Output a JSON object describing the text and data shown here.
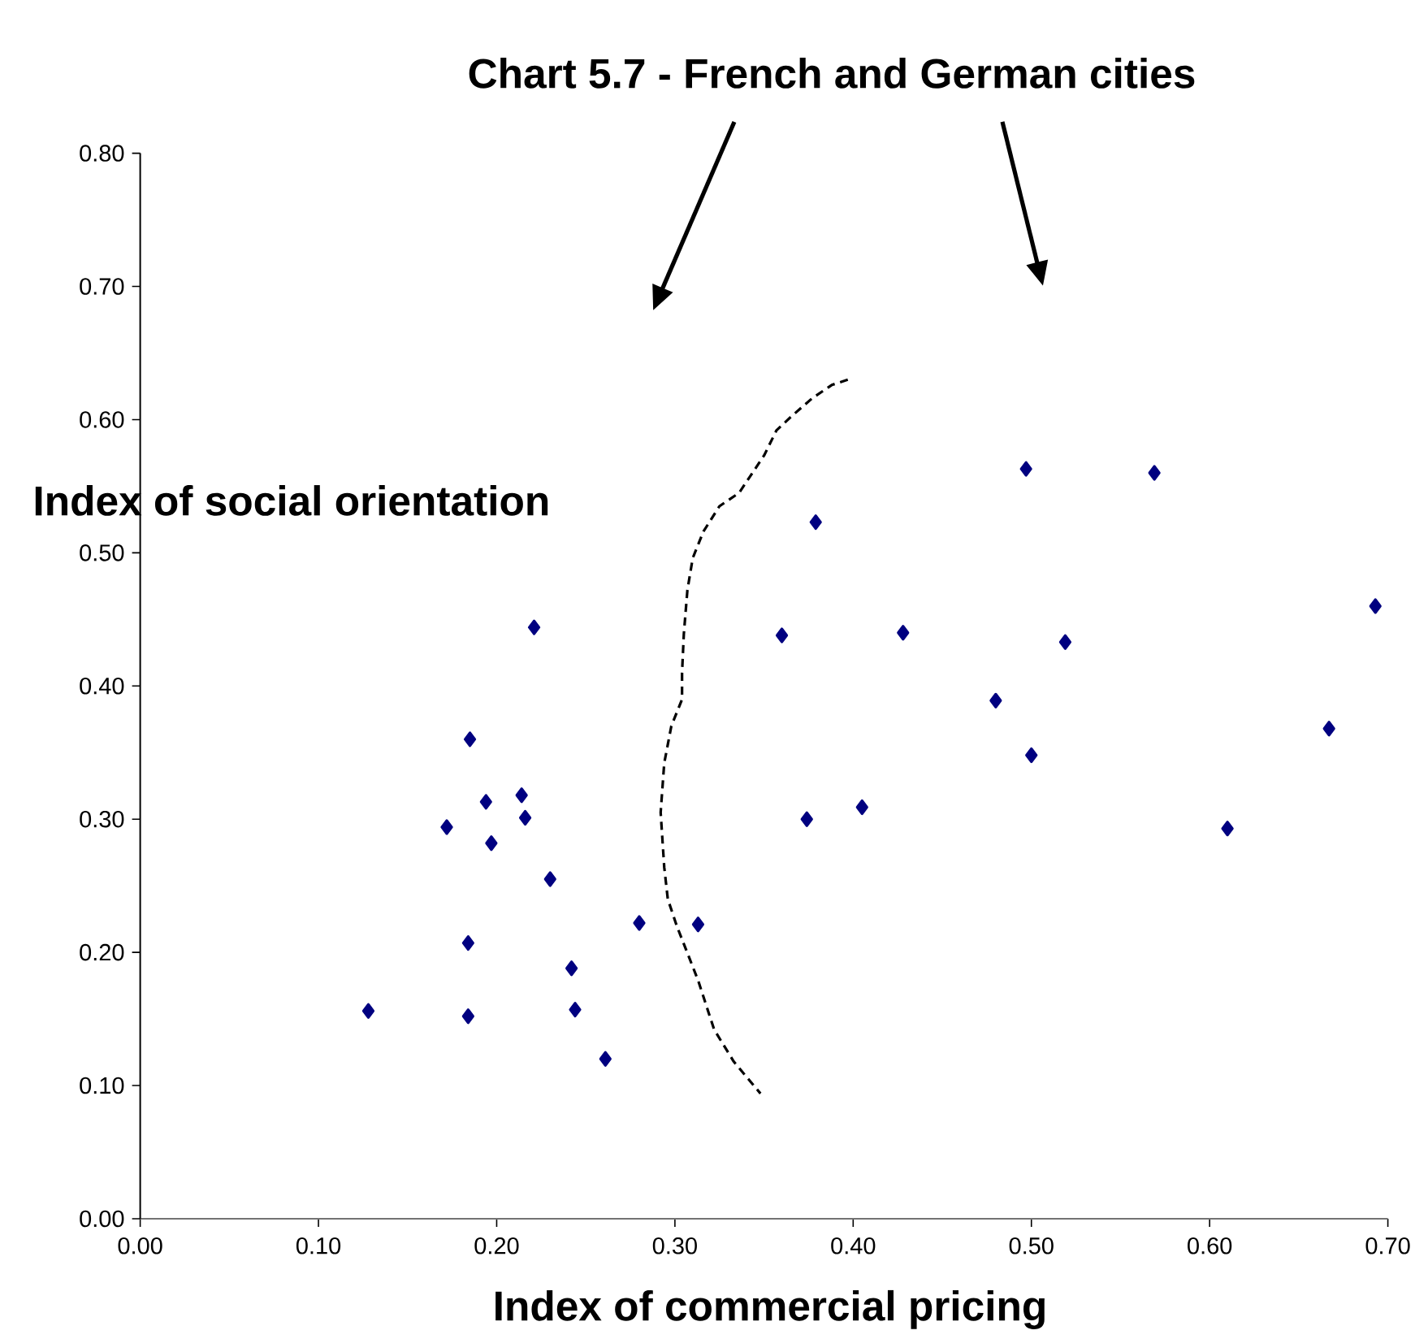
{
  "chart_data": {
    "type": "scatter",
    "title": "Chart 5.7 - French and German cities",
    "xlabel": "Index of commercial pricing",
    "ylabel": "Index of social orientation",
    "xlim": [
      0,
      0.7
    ],
    "ylim": [
      0,
      0.8
    ],
    "xticks": [
      {
        "value": 0,
        "label": "0.00"
      },
      {
        "value": 0.1,
        "label": "0.10"
      },
      {
        "value": 0.2,
        "label": "0.20"
      },
      {
        "value": 0.3,
        "label": "0.30"
      },
      {
        "value": 0.4,
        "label": "0.40"
      },
      {
        "value": 0.5,
        "label": "0.50"
      },
      {
        "value": 0.6,
        "label": "0.60"
      },
      {
        "value": 0.7,
        "label": "0.70"
      }
    ],
    "yticks": [
      {
        "value": 0,
        "label": "0.00"
      },
      {
        "value": 0.1,
        "label": "0.10"
      },
      {
        "value": 0.2,
        "label": "0.20"
      },
      {
        "value": 0.3,
        "label": "0.30"
      },
      {
        "value": 0.4,
        "label": "0.40"
      },
      {
        "value": 0.5,
        "label": "0.50"
      },
      {
        "value": 0.6,
        "label": "0.60"
      },
      {
        "value": 0.7,
        "label": "0.70"
      },
      {
        "value": 0.8,
        "label": "0.80"
      }
    ],
    "series": [
      {
        "type": "scatter",
        "color": "#000080",
        "marker": "diamond",
        "x": [
          0.128,
          0.172,
          0.184,
          0.184,
          0.185,
          0.194,
          0.197,
          0.214,
          0.216,
          0.221,
          0.23,
          0.242,
          0.244,
          0.261,
          0.28,
          0.313,
          0.36,
          0.374,
          0.379,
          0.405,
          0.428,
          0.48,
          0.497,
          0.5,
          0.519,
          0.569,
          0.61,
          0.667,
          0.693
        ],
        "values": [
          0.156,
          0.294,
          0.207,
          0.152,
          0.36,
          0.313,
          0.282,
          0.318,
          0.301,
          0.444,
          0.255,
          0.188,
          0.157,
          0.12,
          0.222,
          0.221,
          0.438,
          0.3,
          0.523,
          0.309,
          0.44,
          0.389,
          0.563,
          0.348,
          0.433,
          0.56,
          0.293,
          0.368,
          0.46
        ]
      },
      {
        "type": "line",
        "color": "#000000",
        "marker": "none",
        "line_style": "dashed",
        "x": [
          0.397,
          0.388,
          0.377,
          0.365,
          0.357,
          0.35,
          0.336,
          0.325,
          0.316,
          0.31,
          0.307,
          0.305,
          0.304,
          0.304,
          0.298,
          0.294,
          0.292,
          0.294,
          0.296,
          0.301,
          0.313,
          0.322,
          0.333,
          0.348
        ],
        "values": [
          0.63,
          0.626,
          0.616,
          0.602,
          0.592,
          0.573,
          0.545,
          0.535,
          0.516,
          0.496,
          0.472,
          0.439,
          0.41,
          0.39,
          0.37,
          0.342,
          0.305,
          0.264,
          0.24,
          0.22,
          0.179,
          0.142,
          0.118,
          0.094
        ]
      }
    ]
  }
}
